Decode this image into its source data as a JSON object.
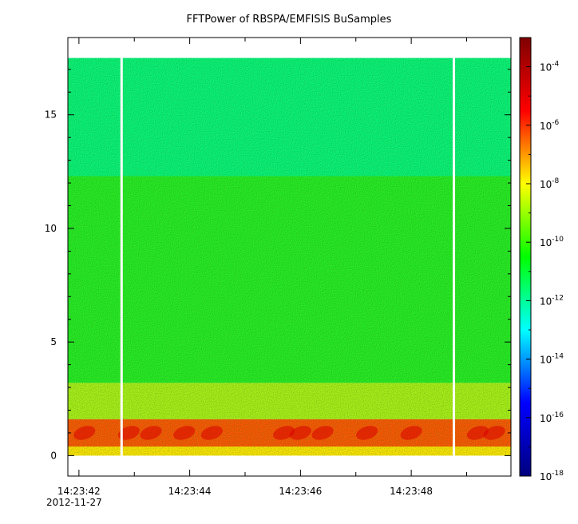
{
  "chart_data": {
    "type": "heatmap",
    "title": "FFTPower of RBSPA/EMFISIS  BuSamples",
    "xlabel": "",
    "ylabel": "",
    "x_ticks": [
      {
        "time": "14:23:42",
        "date": "2012-11-27",
        "t": 0
      },
      {
        "time": "14:23:44",
        "date": "",
        "t": 2
      },
      {
        "time": "14:23:46",
        "date": "",
        "t": 4
      },
      {
        "time": "14:23:48",
        "date": "",
        "t": 6
      }
    ],
    "x_minor_ticks": [
      1,
      3,
      5,
      7
    ],
    "xlim": [
      -0.2,
      7.8
    ],
    "y_ticks": [
      0,
      5,
      10,
      15
    ],
    "ylim": [
      -0.9,
      18.4
    ],
    "colorbar": {
      "scale": "log",
      "range": [
        1e-18,
        0.001
      ],
      "tick_base": "10",
      "tick_exponents": [
        "-4",
        "-6",
        "-8",
        "-10",
        "-12",
        "-14",
        "-16",
        "-18"
      ],
      "colors": [
        "#00007f",
        "#0000ff",
        "#00ffff",
        "#00ff00",
        "#ffff00",
        "#ff0000",
        "#7f0000"
      ]
    },
    "data_extent": {
      "t": [
        -0.2,
        7.8
      ],
      "freq": [
        0,
        17.5
      ]
    },
    "gaps_t": [
      0.77,
      6.77
    ],
    "bands": [
      {
        "freq": [
          12.3,
          17.5
        ],
        "power": "1e-12",
        "color": "#00f07a"
      },
      {
        "freq": [
          3.2,
          12.3
        ],
        "power": "1e-10",
        "color": "#1fe822"
      },
      {
        "freq": [
          1.6,
          3.2
        ],
        "power": "1e-9",
        "color": "#a8ec16"
      },
      {
        "freq": [
          0.4,
          1.6
        ],
        "power": "1e-5",
        "color": "#ff4d00"
      },
      {
        "freq": [
          0,
          0.4
        ],
        "power": "1e-8",
        "color": "#ffe000"
      }
    ]
  }
}
